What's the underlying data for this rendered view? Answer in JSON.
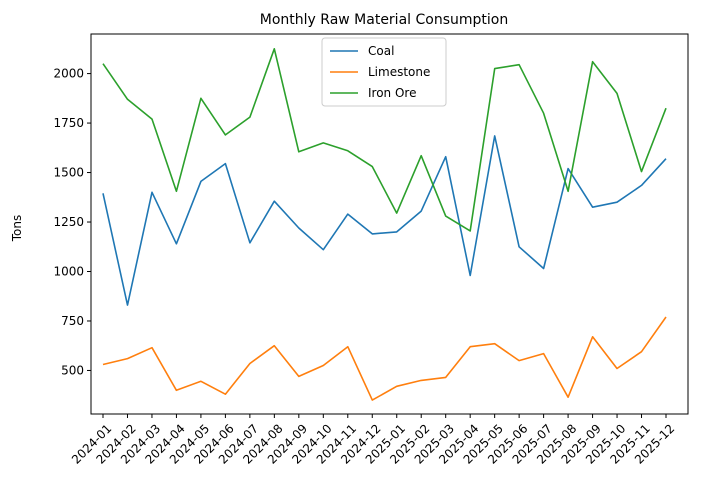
{
  "chart_data": {
    "type": "line",
    "title": "Monthly Raw Material Consumption",
    "xlabel": "",
    "ylabel": "Tons",
    "categories": [
      "2024-01",
      "2024-02",
      "2024-03",
      "2024-04",
      "2024-05",
      "2024-06",
      "2024-07",
      "2024-08",
      "2024-09",
      "2024-10",
      "2024-11",
      "2024-12",
      "2025-01",
      "2025-02",
      "2025-03",
      "2025-04",
      "2025-05",
      "2025-06",
      "2025-07",
      "2025-08",
      "2025-09",
      "2025-10",
      "2025-11",
      "2025-12"
    ],
    "ylim": [
      280,
      2200
    ],
    "yticks": [
      500,
      750,
      1000,
      1250,
      1500,
      1750,
      2000
    ],
    "legend_position": "top-center",
    "grid": false,
    "series": [
      {
        "name": "Coal",
        "color": "#1f77b4",
        "values": [
          1395,
          830,
          1400,
          1140,
          1455,
          1545,
          1145,
          1355,
          1220,
          1110,
          1290,
          1190,
          1200,
          1305,
          1580,
          980,
          1685,
          1125,
          1015,
          1520,
          1325,
          1350,
          1435,
          1570
        ]
      },
      {
        "name": "Limestone",
        "color": "#ff7f0e",
        "values": [
          530,
          560,
          615,
          400,
          445,
          380,
          535,
          625,
          470,
          525,
          620,
          350,
          420,
          450,
          465,
          620,
          635,
          550,
          585,
          365,
          670,
          510,
          595,
          770
        ]
      },
      {
        "name": "Iron Ore",
        "color": "#2ca02c",
        "values": [
          2050,
          1870,
          1770,
          1405,
          1875,
          1690,
          1780,
          2125,
          1605,
          1650,
          1610,
          1530,
          1295,
          1585,
          1280,
          1205,
          2025,
          2045,
          1800,
          1405,
          2060,
          1900,
          1505,
          1825
        ]
      }
    ]
  }
}
